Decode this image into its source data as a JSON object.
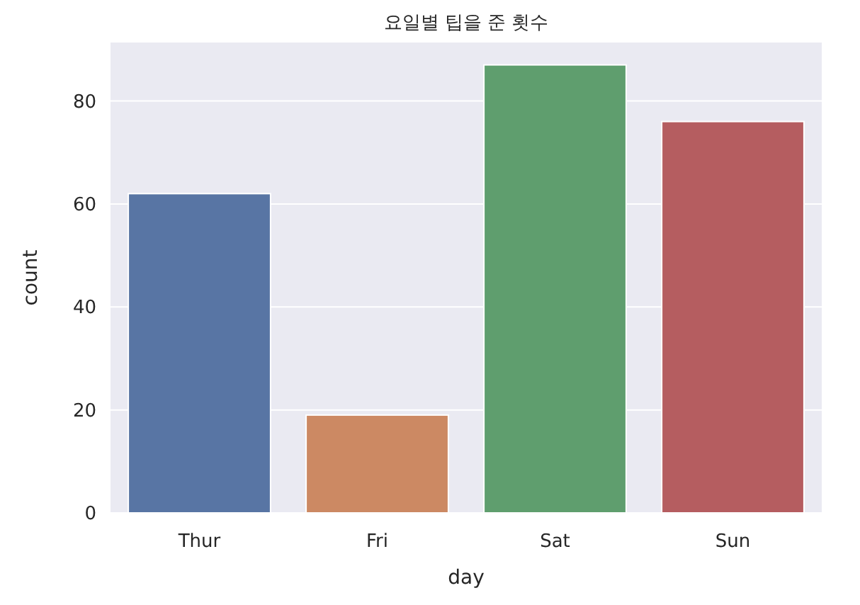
{
  "chart_data": {
    "type": "bar",
    "title": "요일별 팁을 준 횟수",
    "xlabel": "day",
    "ylabel": "count",
    "categories": [
      "Thur",
      "Fri",
      "Sat",
      "Sun"
    ],
    "values": [
      62,
      19,
      87,
      76
    ],
    "colors": [
      "#5875a4",
      "#cc8963",
      "#5f9e6e",
      "#b55d60"
    ],
    "ylim": [
      0,
      91.35
    ],
    "yticks": [
      0,
      20,
      40,
      60,
      80
    ],
    "grid": "y"
  }
}
